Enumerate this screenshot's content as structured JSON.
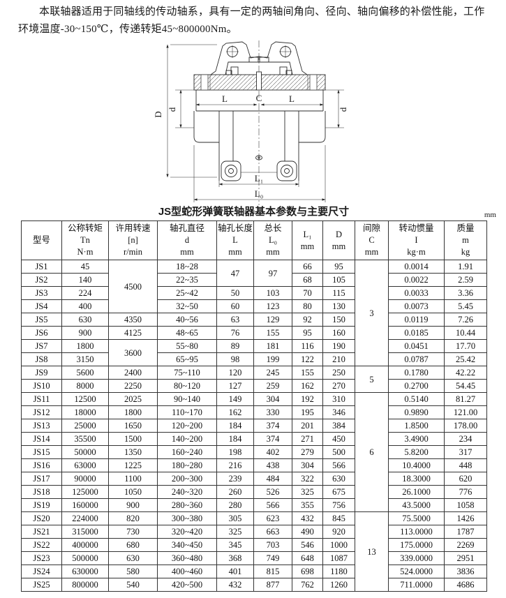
{
  "intro": {
    "text": "本联轴器适用于同轴线的传动轴系，具有一定的两轴间角向、径向、轴向偏移的补偿性能，工作环境温度-30~150℃，传递转矩45~800000Nm。"
  },
  "diagram": {
    "labels": {
      "D": "D",
      "d_left": "d",
      "d_right": "d",
      "L_left": "L",
      "C": "C",
      "L_right": "L",
      "L1": "L₁",
      "L0": "L₀"
    }
  },
  "table": {
    "title": "JS型蛇形弹簧联轴器基本参数与主要尺寸",
    "unit": "mm",
    "headers": [
      {
        "id": "model",
        "lines": [
          "型号"
        ]
      },
      {
        "id": "torque",
        "lines": [
          "公称转矩",
          "Tn",
          "N·m"
        ]
      },
      {
        "id": "speed",
        "lines": [
          "许用转速",
          "[n]",
          "r/min"
        ]
      },
      {
        "id": "bore-diameter",
        "lines": [
          "轴孔直径",
          "d",
          "mm"
        ]
      },
      {
        "id": "bore-length",
        "lines": [
          "轴孔长度",
          "L",
          "mm"
        ]
      },
      {
        "id": "total-length",
        "lines": [
          "总长",
          "L₀",
          "mm"
        ]
      },
      {
        "id": "l1",
        "lines": [
          "L₁",
          "mm"
        ]
      },
      {
        "id": "d-outer",
        "lines": [
          "D",
          "mm"
        ]
      },
      {
        "id": "gap-c",
        "lines": [
          "间隙",
          "C",
          "mm"
        ]
      },
      {
        "id": "inertia",
        "lines": [
          "转动惯量",
          "I",
          "kg·m"
        ]
      },
      {
        "id": "mass",
        "lines": [
          "质量",
          "m",
          "kg"
        ]
      }
    ],
    "rows": [
      [
        "JS1",
        "45",
        {
          "v": "4500",
          "rs": 4
        },
        "18~28",
        {
          "v": "47",
          "rs": 2
        },
        {
          "v": "97",
          "rs": 2
        },
        "66",
        "95",
        {
          "v": "3",
          "rs": 8
        },
        "0.0014",
        "1.91"
      ],
      [
        "JS2",
        "140",
        null,
        "22~35",
        null,
        null,
        "68",
        "105",
        null,
        "0.0022",
        "2.59"
      ],
      [
        "JS3",
        "224",
        null,
        "25~42",
        "50",
        "103",
        "70",
        "115",
        null,
        "0.0033",
        "3.36"
      ],
      [
        "JS4",
        "400",
        null,
        "32~50",
        "60",
        "123",
        "80",
        "130",
        null,
        "0.0073",
        "5.45"
      ],
      [
        "JS5",
        "630",
        "4350",
        "40~56",
        "63",
        "129",
        "92",
        "150",
        null,
        "0.0119",
        "7.26"
      ],
      [
        "JS6",
        "900",
        "4125",
        "48~65",
        "76",
        "155",
        "95",
        "160",
        null,
        "0.0185",
        "10.44"
      ],
      [
        "JS7",
        "1800",
        {
          "v": "3600",
          "rs": 2
        },
        "55~80",
        "89",
        "181",
        "116",
        "190",
        null,
        "0.0451",
        "17.70"
      ],
      [
        "JS8",
        "3150",
        null,
        "65~95",
        "98",
        "199",
        "122",
        "210",
        null,
        "0.0787",
        "25.42"
      ],
      [
        "JS9",
        "5600",
        "2400",
        "75~110",
        "120",
        "245",
        "155",
        "250",
        {
          "v": "5",
          "rs": 2
        },
        "0.1780",
        "42.22"
      ],
      [
        "JS10",
        "8000",
        "2250",
        "80~120",
        "127",
        "259",
        "162",
        "270",
        null,
        "0.2700",
        "54.45"
      ],
      [
        "JS11",
        "12500",
        "2025",
        "90~140",
        "149",
        "304",
        "192",
        "310",
        {
          "v": "6",
          "rs": 9
        },
        "0.5140",
        "81.27"
      ],
      [
        "JS12",
        "18000",
        "1800",
        "110~170",
        "162",
        "330",
        "195",
        "346",
        null,
        "0.9890",
        "121.00"
      ],
      [
        "JS13",
        "25000",
        "1650",
        "120~200",
        "184",
        "374",
        "201",
        "384",
        null,
        "1.8500",
        "178.00"
      ],
      [
        "JS14",
        "35500",
        "1500",
        "140~200",
        "184",
        "374",
        "271",
        "450",
        null,
        "3.4900",
        "234"
      ],
      [
        "JS15",
        "50000",
        "1350",
        "160~240",
        "198",
        "402",
        "279",
        "500",
        null,
        "5.8200",
        "317"
      ],
      [
        "JS16",
        "63000",
        "1225",
        "180~280",
        "216",
        "438",
        "304",
        "566",
        null,
        "10.4000",
        "448"
      ],
      [
        "JS17",
        "90000",
        "1100",
        "200~300",
        "239",
        "484",
        "322",
        "630",
        null,
        "18.3000",
        "620"
      ],
      [
        "JS18",
        "125000",
        "1050",
        "240~320",
        "260",
        "526",
        "325",
        "675",
        null,
        "26.1000",
        "776"
      ],
      [
        "JS19",
        "160000",
        "900",
        "280~360",
        "280",
        "566",
        "355",
        "756",
        null,
        "43.5000",
        "1058"
      ],
      [
        "JS20",
        "224000",
        "820",
        "300~380",
        "305",
        "623",
        "432",
        "845",
        {
          "v": "13",
          "rs": 6
        },
        "75.5000",
        "1426"
      ],
      [
        "JS21",
        "315000",
        "730",
        "320~420",
        "325",
        "663",
        "490",
        "920",
        null,
        "113.0000",
        "1787"
      ],
      [
        "JS22",
        "400000",
        "680",
        "340~450",
        "345",
        "703",
        "546",
        "1000",
        null,
        "175.0000",
        "2269"
      ],
      [
        "JS23",
        "500000",
        "630",
        "360~480",
        "368",
        "749",
        "648",
        "1087",
        null,
        "339.0000",
        "2951"
      ],
      [
        "JS24",
        "630000",
        "580",
        "400~460",
        "401",
        "815",
        "698",
        "1180",
        null,
        "524.0000",
        "3836"
      ],
      [
        "JS25",
        "800000",
        "540",
        "420~500",
        "432",
        "877",
        "762",
        "1260",
        null,
        "711.0000",
        "4686"
      ]
    ]
  }
}
